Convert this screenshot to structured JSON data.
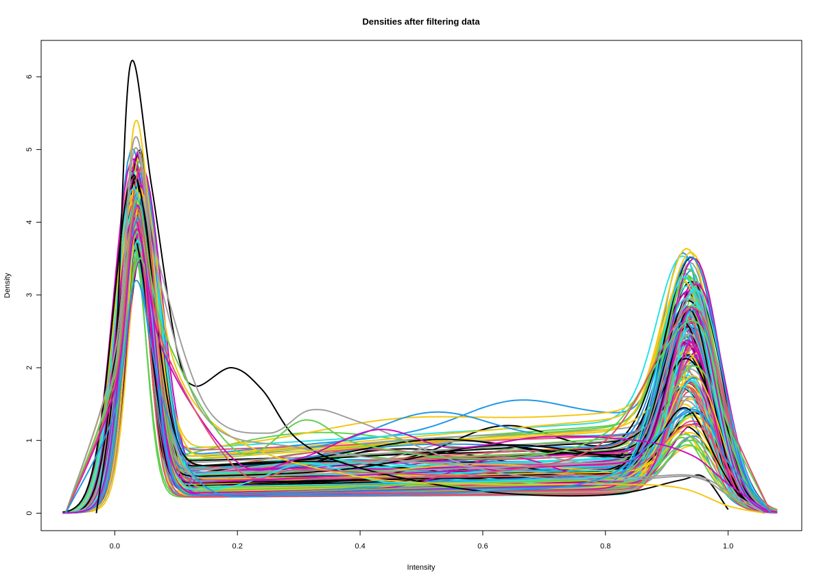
{
  "chart_data": {
    "type": "line",
    "title": "Densities after filtering data",
    "xlabel": "Intensity",
    "ylabel": "Density",
    "xlim": [
      -0.12,
      1.12
    ],
    "ylim": [
      -0.24,
      6.5
    ],
    "x_ticks": [
      0.0,
      0.2,
      0.4,
      0.6,
      0.8,
      1.0
    ],
    "x_tick_labels": [
      "0.0",
      "0.2",
      "0.4",
      "0.6",
      "0.8",
      "1.0"
    ],
    "y_ticks": [
      0,
      1,
      2,
      3,
      4,
      5,
      6
    ],
    "y_tick_labels": [
      "0",
      "1",
      "2",
      "3",
      "4",
      "5",
      "6"
    ],
    "grid": false,
    "legend": "none",
    "palette": [
      "#000000",
      "#DF536B",
      "#61D04F",
      "#2297E6",
      "#28E2E5",
      "#CD0BBC",
      "#F5C710",
      "#9E9E9E"
    ],
    "notable_series": [
      {
        "color": "#000000",
        "x": [
          -0.03,
          0.0,
          0.025,
          0.06,
          0.1,
          0.13,
          0.19,
          0.24,
          0.3,
          0.4,
          0.6,
          0.8,
          0.92,
          0.96,
          1.0
        ],
        "y": [
          0.0,
          2.0,
          6.15,
          4.5,
          2.3,
          1.75,
          2.0,
          1.7,
          1.0,
          0.62,
          0.3,
          0.25,
          0.45,
          0.5,
          0.05
        ]
      },
      {
        "color": "#F5C710",
        "x": [
          -0.08,
          0.0,
          0.032,
          0.06,
          0.1,
          0.2,
          0.4,
          0.6,
          0.8,
          0.92,
          1.0,
          1.06
        ],
        "y": [
          0.0,
          2.2,
          5.35,
          4.0,
          2.0,
          1.0,
          0.5,
          0.4,
          0.4,
          0.35,
          0.1,
          0.0
        ]
      },
      {
        "color": "#9E9E9E",
        "x": [
          -0.08,
          0.0,
          0.032,
          0.07,
          0.15,
          0.25,
          0.32,
          0.4,
          0.6,
          0.8,
          0.94,
          1.0,
          1.06
        ],
        "y": [
          0.0,
          2.2,
          5.15,
          3.5,
          1.45,
          1.1,
          1.42,
          1.25,
          0.6,
          0.45,
          0.5,
          0.25,
          0.0
        ]
      },
      {
        "color": "#9E9E9E",
        "x": [
          -0.08,
          0.0,
          0.032,
          0.07,
          0.15,
          0.3,
          0.5,
          0.8,
          0.94,
          1.0,
          1.06
        ],
        "y": [
          0.0,
          2.0,
          5.0,
          3.3,
          1.3,
          0.9,
          0.7,
          0.5,
          0.52,
          0.3,
          0.0
        ]
      },
      {
        "color": "#61D04F",
        "x": [
          -0.08,
          0.0,
          0.035,
          0.08,
          0.2,
          0.31,
          0.4,
          0.6,
          0.8,
          0.94,
          1.0,
          1.07
        ],
        "y": [
          0.0,
          1.9,
          4.3,
          2.5,
          0.85,
          1.28,
          0.95,
          0.75,
          1.1,
          2.65,
          1.2,
          0.0
        ]
      },
      {
        "color": "#CD0BBC",
        "x": [
          -0.08,
          0.0,
          0.035,
          0.08,
          0.2,
          0.3,
          0.43,
          0.55,
          0.7,
          0.85,
          0.94,
          1.0,
          1.07
        ],
        "y": [
          0.0,
          1.7,
          3.9,
          2.2,
          0.7,
          0.75,
          1.15,
          0.9,
          1.05,
          1.0,
          0.8,
          0.4,
          0.0
        ]
      },
      {
        "color": "#DF536B",
        "x": [
          -0.08,
          0.0,
          0.035,
          0.08,
          0.2,
          0.3,
          0.45,
          0.6,
          0.8,
          0.94,
          1.0,
          1.07
        ],
        "y": [
          0.0,
          1.8,
          4.2,
          2.3,
          0.6,
          0.6,
          0.55,
          0.55,
          1.0,
          2.82,
          1.3,
          0.0
        ]
      },
      {
        "color": "#2297E6",
        "x": [
          -0.08,
          0.0,
          0.035,
          0.08,
          0.15,
          0.3,
          0.6,
          0.8,
          0.94,
          1.0,
          1.07
        ],
        "y": [
          0.0,
          1.4,
          3.2,
          1.5,
          0.35,
          0.25,
          0.3,
          0.5,
          1.4,
          0.7,
          0.0
        ]
      }
    ],
    "bulk_series": {
      "count": 150,
      "description_values": {
        "peak1_x_range": [
          0.028,
          0.045
        ],
        "peak1_y_range": [
          3.2,
          4.55
        ],
        "trough_y_range": [
          0.22,
          0.95
        ],
        "peak2_x_range": [
          0.925,
          0.95
        ],
        "peak2_y_range": [
          0.45,
          2.8
        ]
      }
    }
  }
}
